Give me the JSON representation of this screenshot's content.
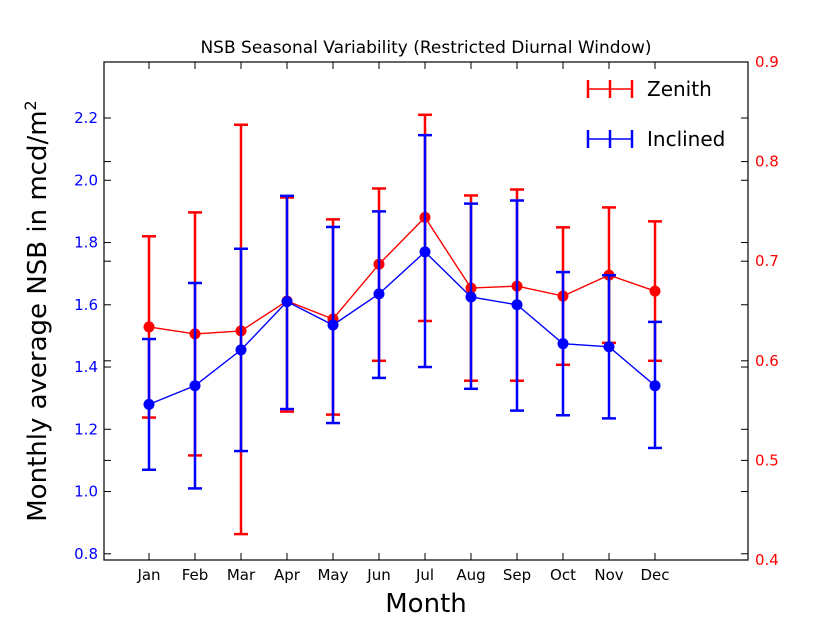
{
  "chart_data": {
    "type": "line",
    "title": "NSB Seasonal Variability (Restricted Diurnal Window)",
    "xlabel": "Month",
    "ylabel": "Monthly average NSB in mcd/m",
    "ylabel_superscript": "2",
    "categories": [
      "Jan",
      "Feb",
      "Mar",
      "Apr",
      "May",
      "Jun",
      "Jul",
      "Aug",
      "Sep",
      "Oct",
      "Nov",
      "Dec"
    ],
    "left_axis": {
      "ylim": [
        0.78,
        2.38
      ],
      "ticks": [
        0.8,
        1.0,
        1.2,
        1.4,
        1.6,
        1.8,
        2.0,
        2.2
      ],
      "tick_labels": [
        "0.8",
        "1.0",
        "1.2",
        "1.4",
        "1.6",
        "1.8",
        "2.0",
        "2.2"
      ],
      "color": "#0000ff"
    },
    "right_axis": {
      "ylim": [
        0.4,
        0.9
      ],
      "ticks": [
        0.4,
        0.5,
        0.6,
        0.7,
        0.8,
        0.9
      ],
      "tick_labels": [
        "0.4",
        "0.5",
        "0.6",
        "0.7",
        "0.8",
        "0.9"
      ],
      "color": "#ff0000"
    },
    "series": [
      {
        "name": "Inclined",
        "axis": "left",
        "color": "#0000ff",
        "values": [
          1.28,
          1.34,
          1.455,
          1.61,
          1.535,
          1.635,
          1.77,
          1.625,
          1.6,
          1.475,
          1.465,
          1.34
        ],
        "err_low": [
          1.07,
          1.01,
          1.13,
          1.265,
          1.22,
          1.365,
          1.4,
          1.33,
          1.26,
          1.245,
          1.235,
          1.14
        ],
        "err_high": [
          1.49,
          1.67,
          1.78,
          1.95,
          1.85,
          1.9,
          2.145,
          1.925,
          1.935,
          1.705,
          1.695,
          1.545
        ]
      },
      {
        "name": "Zenith",
        "axis": "right",
        "color": "#ff0000",
        "values": [
          0.634,
          0.627,
          0.63,
          0.66,
          0.642,
          0.697,
          0.744,
          0.673,
          0.675,
          0.665,
          0.686,
          0.67
        ],
        "err_low": [
          0.543,
          0.505,
          0.426,
          0.549,
          0.546,
          0.6,
          0.64,
          0.58,
          0.58,
          0.596,
          0.618,
          0.6
        ],
        "err_high": [
          0.725,
          0.749,
          0.837,
          0.764,
          0.742,
          0.773,
          0.847,
          0.766,
          0.772,
          0.734,
          0.754,
          0.74
        ]
      }
    ],
    "legend": {
      "placement": "top-right",
      "entries": [
        "Zenith",
        "Inclined"
      ]
    }
  }
}
